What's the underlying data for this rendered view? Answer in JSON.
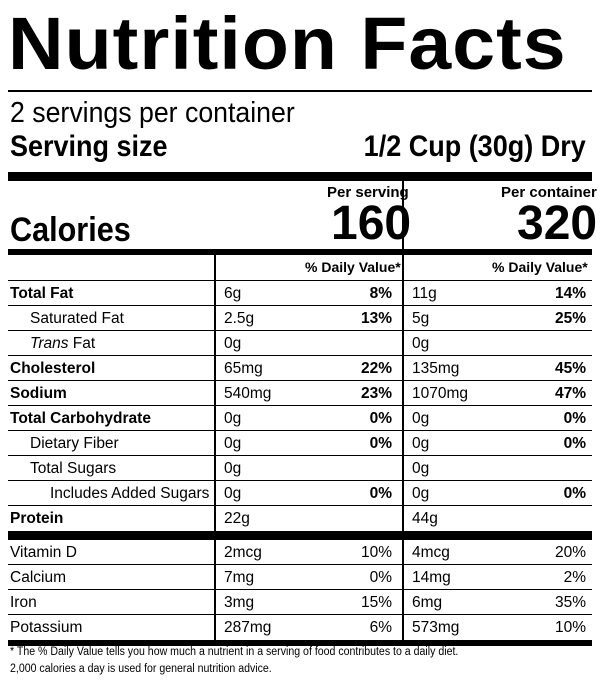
{
  "title": "Nutrition Facts",
  "servings_per_container": "2 servings per container",
  "serving_size_label": "Serving size",
  "serving_size_value": "1/2 Cup (30g) Dry",
  "per_serving_label": "Per serving",
  "per_container_label": "Per container",
  "calories_label": "Calories",
  "calories_per_serving": "160",
  "calories_per_container": "320",
  "dv_header": "% Daily Value*",
  "nutrients": [
    {
      "name": "Total Fat",
      "bold": true,
      "indent": 0,
      "amt1": "6g",
      "dv1": "8%",
      "amt2": "11g",
      "dv2": "14%"
    },
    {
      "name": "Saturated Fat",
      "bold": false,
      "indent": 1,
      "amt1": "2.5g",
      "dv1": "13%",
      "amt2": "5g",
      "dv2": "25%"
    },
    {
      "name_italic": "Trans",
      "name_rest": " Fat",
      "bold": false,
      "indent": 1,
      "amt1": "0g",
      "dv1": "",
      "amt2": "0g",
      "dv2": ""
    },
    {
      "name": "Cholesterol",
      "bold": true,
      "indent": 0,
      "amt1": "65mg",
      "dv1": "22%",
      "amt2": "135mg",
      "dv2": "45%"
    },
    {
      "name": "Sodium",
      "bold": true,
      "indent": 0,
      "amt1": "540mg",
      "dv1": "23%",
      "amt2": "1070mg",
      "dv2": "47%"
    },
    {
      "name": "Total Carbohydrate",
      "bold": true,
      "indent": 0,
      "amt1": "0g",
      "dv1": "0%",
      "amt2": "0g",
      "dv2": "0%"
    },
    {
      "name": "Dietary Fiber",
      "bold": false,
      "indent": 1,
      "amt1": "0g",
      "dv1": "0%",
      "amt2": "0g",
      "dv2": "0%"
    },
    {
      "name": "Total Sugars",
      "bold": false,
      "indent": 1,
      "amt1": "0g",
      "dv1": "",
      "amt2": "0g",
      "dv2": ""
    },
    {
      "name": "Includes Added Sugars",
      "bold": false,
      "indent": 2,
      "amt1": "0g",
      "dv1": "0%",
      "amt2": "0g",
      "dv2": "0%"
    },
    {
      "name": "Protein",
      "bold": true,
      "indent": 0,
      "amt1": "22g",
      "dv1": "",
      "amt2": "44g",
      "dv2": ""
    }
  ],
  "vitamins": [
    {
      "name": "Vitamin D",
      "amt1": "2mcg",
      "dv1": "10%",
      "amt2": "4mcg",
      "dv2": "20%"
    },
    {
      "name": "Calcium",
      "amt1": "7mg",
      "dv1": "0%",
      "amt2": "14mg",
      "dv2": "2%"
    },
    {
      "name": "Iron",
      "amt1": "3mg",
      "dv1": "15%",
      "amt2": "6mg",
      "dv2": "35%"
    },
    {
      "name": "Potassium",
      "amt1": "287mg",
      "dv1": "6%",
      "amt2": "573mg",
      "dv2": "10%"
    }
  ],
  "footnote_line1": "* The % Daily Value tells you how much a nutrient in a serving of food contributes to a daily diet.",
  "footnote_line2": "2,000 calories a day is used for general nutrition advice."
}
